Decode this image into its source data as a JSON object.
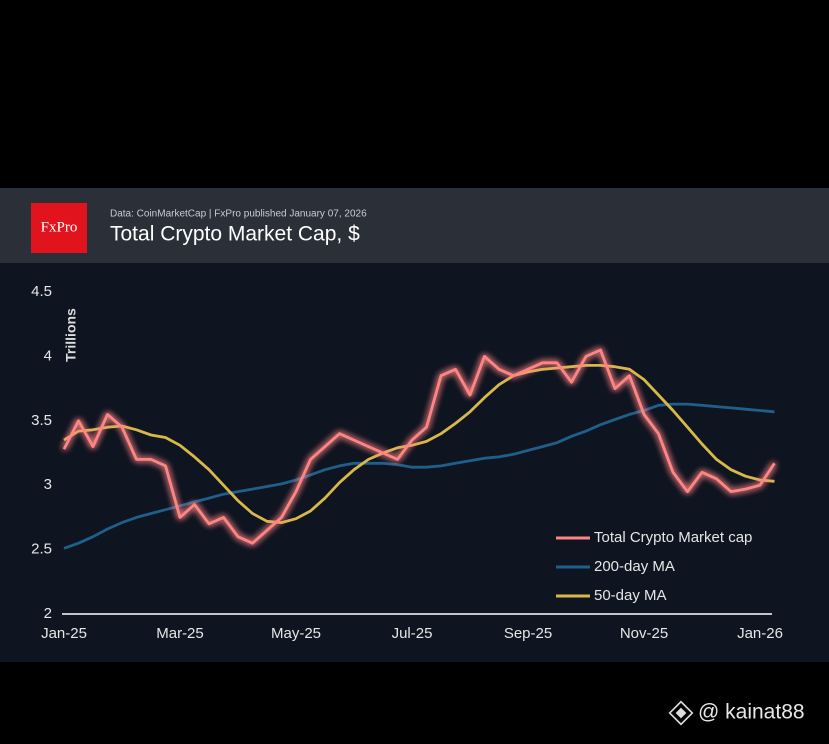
{
  "logo": "FxPro",
  "watermark": "@ kainat88",
  "chart_data": {
    "type": "line",
    "subtitle": "Data: CoinMarketCap | FxPro published January 07, 2026",
    "title": "Total Crypto Market Cap, $",
    "y_label": "Trillions",
    "categories": [
      "Jan-25",
      null,
      null,
      null,
      null,
      null,
      null,
      null,
      "Mar-25",
      null,
      null,
      null,
      null,
      null,
      null,
      null,
      "May-25",
      null,
      null,
      null,
      null,
      null,
      null,
      null,
      "Jul-25",
      null,
      null,
      null,
      null,
      null,
      null,
      null,
      "Sep-25",
      null,
      null,
      null,
      null,
      null,
      null,
      null,
      "Nov-25",
      null,
      null,
      null,
      null,
      null,
      null,
      null,
      "Jan-26",
      null
    ],
    "ylim": [
      2.0,
      4.5
    ],
    "yticks": [
      2.0,
      2.5,
      3.0,
      3.5,
      4.0,
      4.5
    ],
    "grid": false,
    "legend": "lower right",
    "series": [
      {
        "name": "Total Crypto Market cap",
        "color": "#ff8585",
        "values": [
          3.28,
          3.5,
          3.3,
          3.55,
          3.45,
          3.2,
          3.2,
          3.15,
          2.75,
          2.85,
          2.7,
          2.75,
          2.6,
          2.55,
          2.65,
          2.75,
          2.95,
          3.2,
          3.3,
          3.4,
          3.35,
          3.3,
          3.25,
          3.2,
          3.35,
          3.45,
          3.85,
          3.9,
          3.7,
          4.0,
          3.9,
          3.85,
          3.9,
          3.95,
          3.95,
          3.8,
          4.0,
          4.05,
          3.75,
          3.85,
          3.55,
          3.4,
          3.1,
          2.95,
          3.1,
          3.05,
          2.95,
          2.97,
          3.0,
          3.17
        ]
      },
      {
        "name": "200-day MA",
        "color": "#1f5f8b",
        "values": [
          2.51,
          2.55,
          2.6,
          2.66,
          2.71,
          2.75,
          2.78,
          2.81,
          2.84,
          2.87,
          2.9,
          2.93,
          2.95,
          2.97,
          2.99,
          3.01,
          3.04,
          3.08,
          3.12,
          3.15,
          3.17,
          3.17,
          3.17,
          3.16,
          3.14,
          3.14,
          3.15,
          3.17,
          3.19,
          3.21,
          3.22,
          3.24,
          3.27,
          3.3,
          3.33,
          3.38,
          3.42,
          3.47,
          3.51,
          3.55,
          3.58,
          3.62,
          3.63,
          3.63,
          3.62,
          3.61,
          3.6,
          3.59,
          3.58,
          3.57
        ]
      },
      {
        "name": "50-day MA",
        "color": "#d9b84a",
        "values": [
          3.35,
          3.42,
          3.43,
          3.45,
          3.46,
          3.43,
          3.39,
          3.37,
          3.31,
          3.22,
          3.12,
          3.0,
          2.88,
          2.78,
          2.72,
          2.71,
          2.74,
          2.8,
          2.9,
          3.02,
          3.12,
          3.2,
          3.25,
          3.29,
          3.31,
          3.34,
          3.4,
          3.48,
          3.57,
          3.68,
          3.78,
          3.85,
          3.88,
          3.9,
          3.91,
          3.92,
          3.93,
          3.93,
          3.92,
          3.9,
          3.82,
          3.7,
          3.58,
          3.45,
          3.32,
          3.2,
          3.12,
          3.07,
          3.04,
          3.03
        ]
      }
    ]
  }
}
